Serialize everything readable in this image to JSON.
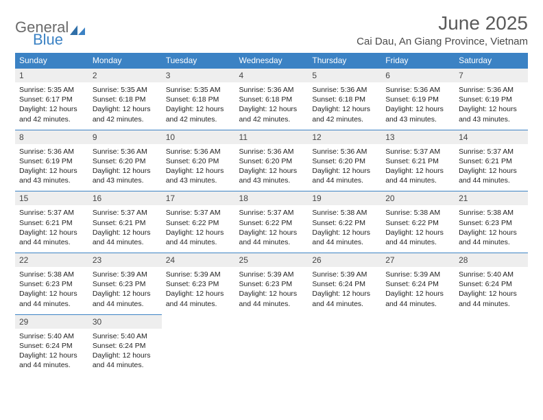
{
  "logo": {
    "text1": "General",
    "text2": "Blue",
    "color1": "#6a6a6a",
    "color2": "#3b82c4"
  },
  "title": {
    "month": "June 2025",
    "location": "Cai Dau, An Giang Province, Vietnam"
  },
  "colors": {
    "header_bg": "#3b82c4",
    "header_fg": "#ffffff",
    "daynum_bg": "#eeeeee",
    "row_border": "#3b82c4"
  },
  "weekdays": [
    "Sunday",
    "Monday",
    "Tuesday",
    "Wednesday",
    "Thursday",
    "Friday",
    "Saturday"
  ],
  "labels": {
    "sunrise": "Sunrise:",
    "sunset": "Sunset:",
    "daylight": "Daylight:"
  },
  "days": [
    {
      "n": "1",
      "sr": "5:35 AM",
      "ss": "6:17 PM",
      "dl": "12 hours and 42 minutes."
    },
    {
      "n": "2",
      "sr": "5:35 AM",
      "ss": "6:18 PM",
      "dl": "12 hours and 42 minutes."
    },
    {
      "n": "3",
      "sr": "5:35 AM",
      "ss": "6:18 PM",
      "dl": "12 hours and 42 minutes."
    },
    {
      "n": "4",
      "sr": "5:36 AM",
      "ss": "6:18 PM",
      "dl": "12 hours and 42 minutes."
    },
    {
      "n": "5",
      "sr": "5:36 AM",
      "ss": "6:18 PM",
      "dl": "12 hours and 42 minutes."
    },
    {
      "n": "6",
      "sr": "5:36 AM",
      "ss": "6:19 PM",
      "dl": "12 hours and 43 minutes."
    },
    {
      "n": "7",
      "sr": "5:36 AM",
      "ss": "6:19 PM",
      "dl": "12 hours and 43 minutes."
    },
    {
      "n": "8",
      "sr": "5:36 AM",
      "ss": "6:19 PM",
      "dl": "12 hours and 43 minutes."
    },
    {
      "n": "9",
      "sr": "5:36 AM",
      "ss": "6:20 PM",
      "dl": "12 hours and 43 minutes."
    },
    {
      "n": "10",
      "sr": "5:36 AM",
      "ss": "6:20 PM",
      "dl": "12 hours and 43 minutes."
    },
    {
      "n": "11",
      "sr": "5:36 AM",
      "ss": "6:20 PM",
      "dl": "12 hours and 43 minutes."
    },
    {
      "n": "12",
      "sr": "5:36 AM",
      "ss": "6:20 PM",
      "dl": "12 hours and 44 minutes."
    },
    {
      "n": "13",
      "sr": "5:37 AM",
      "ss": "6:21 PM",
      "dl": "12 hours and 44 minutes."
    },
    {
      "n": "14",
      "sr": "5:37 AM",
      "ss": "6:21 PM",
      "dl": "12 hours and 44 minutes."
    },
    {
      "n": "15",
      "sr": "5:37 AM",
      "ss": "6:21 PM",
      "dl": "12 hours and 44 minutes."
    },
    {
      "n": "16",
      "sr": "5:37 AM",
      "ss": "6:21 PM",
      "dl": "12 hours and 44 minutes."
    },
    {
      "n": "17",
      "sr": "5:37 AM",
      "ss": "6:22 PM",
      "dl": "12 hours and 44 minutes."
    },
    {
      "n": "18",
      "sr": "5:37 AM",
      "ss": "6:22 PM",
      "dl": "12 hours and 44 minutes."
    },
    {
      "n": "19",
      "sr": "5:38 AM",
      "ss": "6:22 PM",
      "dl": "12 hours and 44 minutes."
    },
    {
      "n": "20",
      "sr": "5:38 AM",
      "ss": "6:22 PM",
      "dl": "12 hours and 44 minutes."
    },
    {
      "n": "21",
      "sr": "5:38 AM",
      "ss": "6:23 PM",
      "dl": "12 hours and 44 minutes."
    },
    {
      "n": "22",
      "sr": "5:38 AM",
      "ss": "6:23 PM",
      "dl": "12 hours and 44 minutes."
    },
    {
      "n": "23",
      "sr": "5:39 AM",
      "ss": "6:23 PM",
      "dl": "12 hours and 44 minutes."
    },
    {
      "n": "24",
      "sr": "5:39 AM",
      "ss": "6:23 PM",
      "dl": "12 hours and 44 minutes."
    },
    {
      "n": "25",
      "sr": "5:39 AM",
      "ss": "6:23 PM",
      "dl": "12 hours and 44 minutes."
    },
    {
      "n": "26",
      "sr": "5:39 AM",
      "ss": "6:24 PM",
      "dl": "12 hours and 44 minutes."
    },
    {
      "n": "27",
      "sr": "5:39 AM",
      "ss": "6:24 PM",
      "dl": "12 hours and 44 minutes."
    },
    {
      "n": "28",
      "sr": "5:40 AM",
      "ss": "6:24 PM",
      "dl": "12 hours and 44 minutes."
    },
    {
      "n": "29",
      "sr": "5:40 AM",
      "ss": "6:24 PM",
      "dl": "12 hours and 44 minutes."
    },
    {
      "n": "30",
      "sr": "5:40 AM",
      "ss": "6:24 PM",
      "dl": "12 hours and 44 minutes."
    }
  ]
}
